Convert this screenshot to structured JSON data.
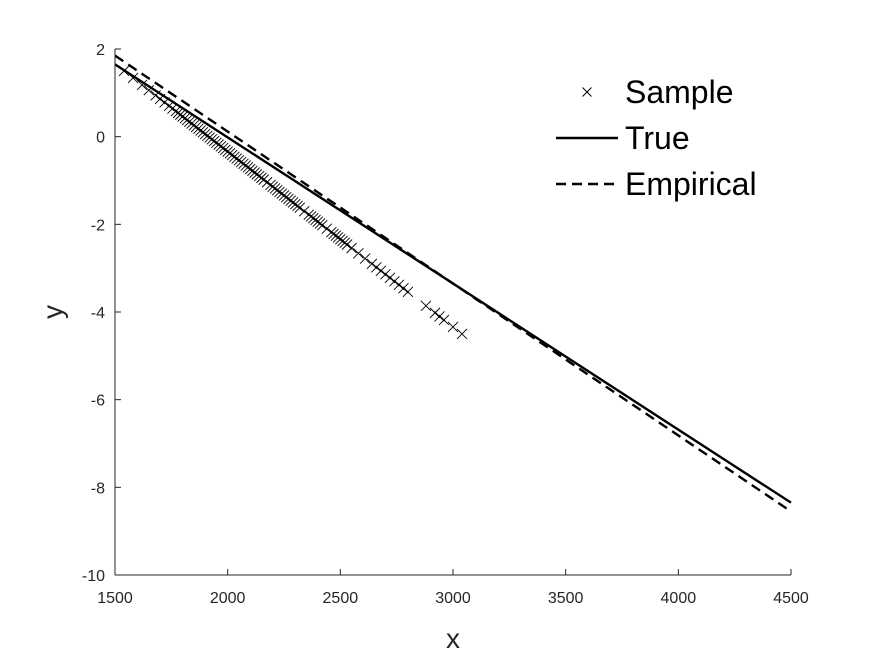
{
  "chart_data": {
    "type": "scatter",
    "xlabel": "x",
    "ylabel": "y",
    "xlim": [
      1500,
      4500
    ],
    "ylim": [
      -10,
      2
    ],
    "xticks": [
      1500,
      2000,
      2500,
      3000,
      3500,
      4000,
      4500
    ],
    "yticks": [
      -10,
      -8,
      -6,
      -4,
      -2,
      0,
      2
    ],
    "grid": false,
    "legend_position": "top-right",
    "legend": [
      "Sample",
      "True",
      "Empirical"
    ],
    "series": [
      {
        "name": "Sample",
        "kind": "markers",
        "marker": "x",
        "color": "#000000",
        "x": [
          1540,
          1580,
          1620,
          1650,
          1680,
          1700,
          1720,
          1740,
          1755,
          1770,
          1780,
          1790,
          1800,
          1810,
          1820,
          1830,
          1840,
          1850,
          1860,
          1870,
          1880,
          1890,
          1900,
          1910,
          1920,
          1930,
          1940,
          1950,
          1960,
          1970,
          1980,
          1990,
          2000,
          2010,
          2020,
          2030,
          2040,
          2050,
          2060,
          2070,
          2080,
          2090,
          2100,
          2110,
          2120,
          2130,
          2140,
          2150,
          2160,
          2175,
          2190,
          2200,
          2210,
          2220,
          2230,
          2240,
          2250,
          2260,
          2270,
          2280,
          2290,
          2300,
          2310,
          2320,
          2340,
          2360,
          2370,
          2380,
          2390,
          2400,
          2410,
          2420,
          2440,
          2460,
          2470,
          2480,
          2490,
          2500,
          2510,
          2520,
          2530,
          2550,
          2580,
          2610,
          2640,
          2660,
          2680,
          2700,
          2720,
          2740,
          2760,
          2780,
          2800,
          2880,
          2920,
          2940,
          2960,
          3000,
          3040
        ],
        "y": [
          1.5,
          1.34,
          1.18,
          1.06,
          0.94,
          0.86,
          0.78,
          0.7,
          0.64,
          0.58,
          0.54,
          0.5,
          0.46,
          0.42,
          0.38,
          0.34,
          0.3,
          0.26,
          0.22,
          0.18,
          0.14,
          0.1,
          0.06,
          0.02,
          -0.02,
          -0.06,
          -0.1,
          -0.14,
          -0.18,
          -0.22,
          -0.26,
          -0.3,
          -0.34,
          -0.38,
          -0.42,
          -0.46,
          -0.5,
          -0.54,
          -0.58,
          -0.62,
          -0.66,
          -0.7,
          -0.74,
          -0.78,
          -0.82,
          -0.86,
          -0.9,
          -0.94,
          -0.98,
          -1.04,
          -1.1,
          -1.14,
          -1.18,
          -1.22,
          -1.26,
          -1.3,
          -1.34,
          -1.38,
          -1.42,
          -1.46,
          -1.5,
          -1.54,
          -1.58,
          -1.62,
          -1.7,
          -1.78,
          -1.82,
          -1.86,
          -1.9,
          -1.94,
          -1.98,
          -2.02,
          -2.1,
          -2.18,
          -2.22,
          -2.26,
          -2.3,
          -2.34,
          -2.38,
          -2.42,
          -2.46,
          -2.54,
          -2.66,
          -2.78,
          -2.9,
          -2.98,
          -3.06,
          -3.14,
          -3.22,
          -3.3,
          -3.38,
          -3.46,
          -3.54,
          -3.86,
          -4.02,
          -4.1,
          -4.18,
          -4.34,
          -4.5
        ]
      },
      {
        "name": "True",
        "kind": "line",
        "dash": "solid",
        "color": "#000000",
        "x": [
          1500,
          4500
        ],
        "y": [
          1.65,
          -8.35
        ]
      },
      {
        "name": "Empirical",
        "kind": "line",
        "dash": "dashed",
        "color": "#000000",
        "x": [
          1500,
          4500
        ],
        "y": [
          1.85,
          -8.55
        ]
      }
    ]
  }
}
